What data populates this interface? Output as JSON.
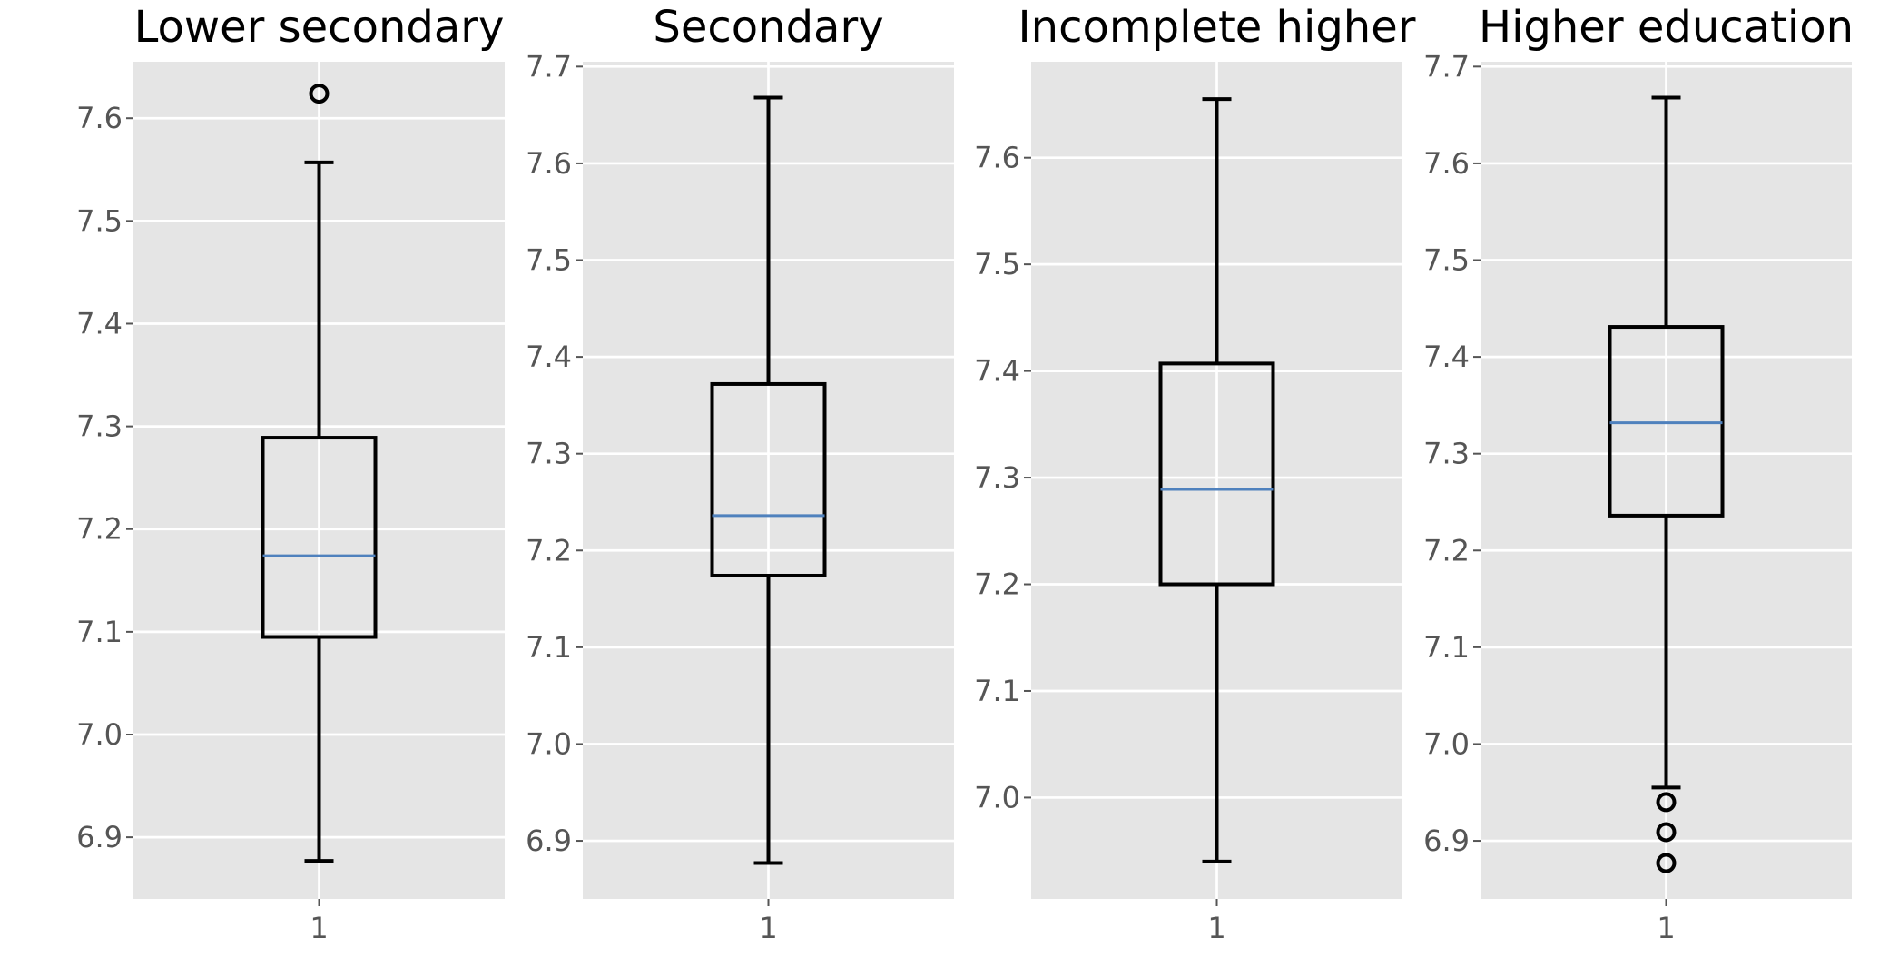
{
  "chart_data": [
    {
      "type": "box",
      "title": "Lower secondary",
      "categories": [
        "1"
      ],
      "ylim": [
        6.84,
        7.655
      ],
      "yticks": [
        6.9,
        7.0,
        7.1,
        7.2,
        7.3,
        7.4,
        7.5,
        7.6
      ],
      "box": {
        "whislo": 6.877,
        "q1": 7.095,
        "median": 7.174,
        "q3": 7.289,
        "whishi": 7.557,
        "fliers": [
          7.624
        ]
      },
      "grid": true
    },
    {
      "type": "box",
      "title": "Secondary",
      "categories": [
        "1"
      ],
      "ylim": [
        6.84,
        7.705
      ],
      "yticks": [
        6.9,
        7.0,
        7.1,
        7.2,
        7.3,
        7.4,
        7.5,
        7.6,
        7.7
      ],
      "box": {
        "whislo": 6.877,
        "q1": 7.174,
        "median": 7.236,
        "q3": 7.372,
        "whishi": 7.668,
        "fliers": []
      },
      "grid": true
    },
    {
      "type": "box",
      "title": "Incomplete higher",
      "categories": [
        "1"
      ],
      "ylim": [
        6.905,
        7.69
      ],
      "yticks": [
        7.0,
        7.1,
        7.2,
        7.3,
        7.4,
        7.5,
        7.6
      ],
      "box": {
        "whislo": 6.94,
        "q1": 7.2,
        "median": 7.289,
        "q3": 7.407,
        "whishi": 7.655,
        "fliers": []
      },
      "grid": true
    },
    {
      "type": "box",
      "title": "Higher education",
      "categories": [
        "1"
      ],
      "ylim": [
        6.84,
        7.705
      ],
      "yticks": [
        6.9,
        7.0,
        7.1,
        7.2,
        7.3,
        7.4,
        7.5,
        7.6,
        7.7
      ],
      "box": {
        "whislo": 6.955,
        "q1": 7.236,
        "median": 7.332,
        "q3": 7.431,
        "whishi": 7.668,
        "fliers": [
          6.94,
          6.909,
          6.877
        ]
      },
      "grid": true
    }
  ],
  "colors": {
    "panel": "#e5e5e5",
    "grid": "#ffffff",
    "box": "#000000",
    "median": "#4f81bd",
    "tick_text": "#555555"
  }
}
